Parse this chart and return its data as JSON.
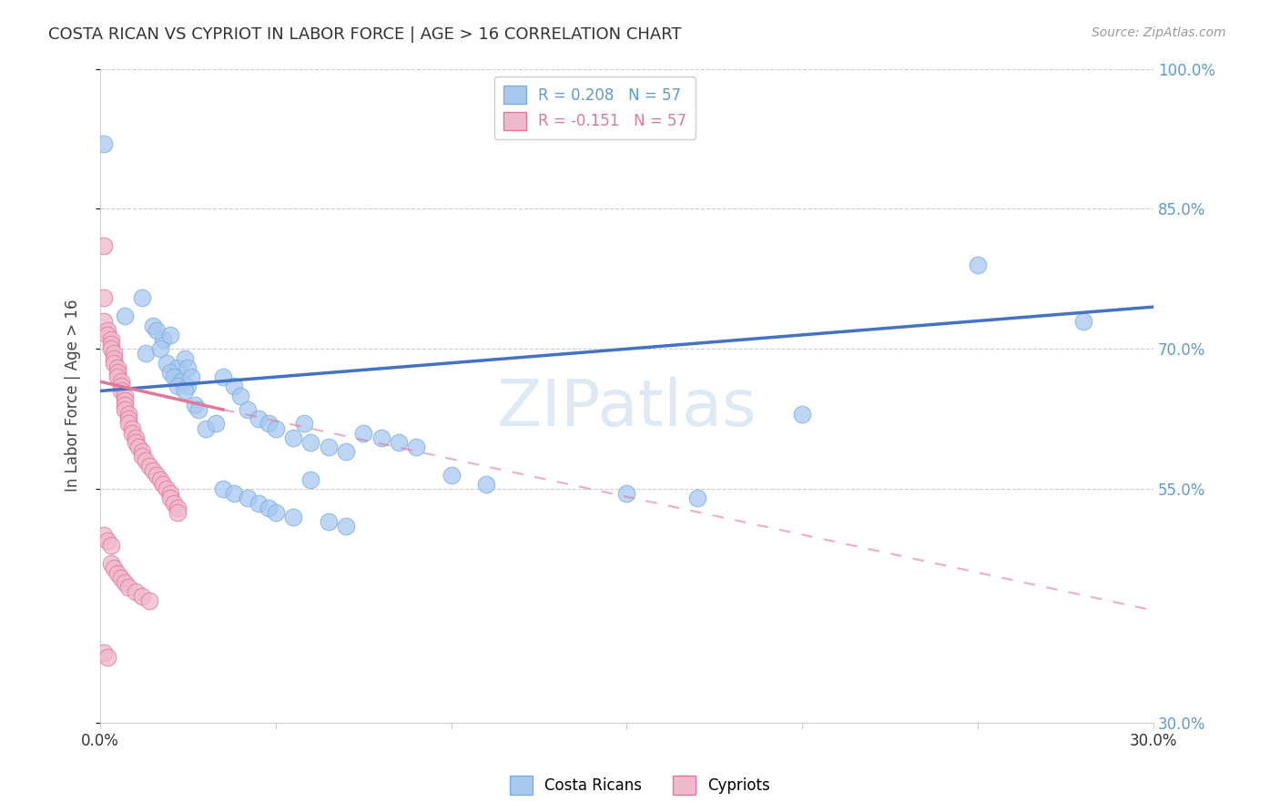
{
  "title": "COSTA RICAN VS CYPRIOT IN LABOR FORCE | AGE > 16 CORRELATION CHART",
  "source": "Source: ZipAtlas.com",
  "ylabel": "In Labor Force | Age > 16",
  "xlim": [
    0.0,
    0.3
  ],
  "ylim": [
    0.3,
    1.0
  ],
  "ytick_vals": [
    0.3,
    0.55,
    0.7,
    0.85,
    1.0
  ],
  "ytick_labels_right": [
    "30.0%",
    "55.0%",
    "70.0%",
    "85.0%",
    "100.0%"
  ],
  "xtick_vals": [
    0.0,
    0.05,
    0.1,
    0.15,
    0.2,
    0.25,
    0.3
  ],
  "xtick_labels": [
    "0.0%",
    "",
    "",
    "",
    "",
    "",
    "30.0%"
  ],
  "blue_line": [
    [
      0.0,
      0.655
    ],
    [
      0.3,
      0.745
    ]
  ],
  "pink_line_solid": [
    [
      0.0,
      0.665
    ],
    [
      0.035,
      0.635
    ]
  ],
  "pink_line_dash": [
    [
      0.035,
      0.635
    ],
    [
      0.3,
      0.42
    ]
  ],
  "background_color": "#ffffff",
  "grid_color": "#cccccc",
  "blue_color": "#4472c4",
  "blue_scatter_color": "#a8c8f0",
  "blue_edge_color": "#7aaee0",
  "pink_color": "#e07898",
  "pink_scatter_color": "#f0b8cc",
  "pink_edge_color": "#e07898",
  "right_tick_color": "#5b9bd5",
  "cr_x": [
    0.001,
    0.007,
    0.012,
    0.015,
    0.018,
    0.016,
    0.013,
    0.02,
    0.017,
    0.019,
    0.022,
    0.02,
    0.021,
    0.024,
    0.023,
    0.025,
    0.022,
    0.025,
    0.024,
    0.027,
    0.028,
    0.026,
    0.03,
    0.033,
    0.035,
    0.038,
    0.04,
    0.042,
    0.045,
    0.048,
    0.05,
    0.055,
    0.06,
    0.065,
    0.058,
    0.07,
    0.035,
    0.038,
    0.042,
    0.045,
    0.048,
    0.05,
    0.055,
    0.06,
    0.065,
    0.07,
    0.075,
    0.08,
    0.085,
    0.09,
    0.1,
    0.11,
    0.15,
    0.17,
    0.2,
    0.25,
    0.28
  ],
  "cr_y": [
    0.92,
    0.735,
    0.755,
    0.725,
    0.71,
    0.72,
    0.695,
    0.715,
    0.7,
    0.685,
    0.68,
    0.675,
    0.67,
    0.69,
    0.665,
    0.68,
    0.66,
    0.66,
    0.655,
    0.64,
    0.635,
    0.67,
    0.615,
    0.62,
    0.67,
    0.66,
    0.65,
    0.635,
    0.625,
    0.62,
    0.615,
    0.605,
    0.6,
    0.595,
    0.62,
    0.59,
    0.55,
    0.545,
    0.54,
    0.535,
    0.53,
    0.525,
    0.52,
    0.56,
    0.515,
    0.51,
    0.61,
    0.605,
    0.6,
    0.595,
    0.565,
    0.555,
    0.545,
    0.54,
    0.63,
    0.79,
    0.73
  ],
  "cy_x": [
    0.001,
    0.001,
    0.001,
    0.002,
    0.002,
    0.003,
    0.003,
    0.003,
    0.004,
    0.004,
    0.004,
    0.005,
    0.005,
    0.005,
    0.006,
    0.006,
    0.006,
    0.007,
    0.007,
    0.007,
    0.007,
    0.008,
    0.008,
    0.008,
    0.009,
    0.009,
    0.01,
    0.01,
    0.011,
    0.012,
    0.012,
    0.013,
    0.014,
    0.015,
    0.016,
    0.017,
    0.018,
    0.019,
    0.02,
    0.02,
    0.021,
    0.022,
    0.022,
    0.003,
    0.004,
    0.005,
    0.006,
    0.007,
    0.008,
    0.01,
    0.012,
    0.014,
    0.001,
    0.002,
    0.003,
    0.001,
    0.002
  ],
  "cy_y": [
    0.81,
    0.755,
    0.73,
    0.72,
    0.715,
    0.71,
    0.705,
    0.7,
    0.695,
    0.69,
    0.685,
    0.68,
    0.675,
    0.67,
    0.665,
    0.66,
    0.655,
    0.65,
    0.645,
    0.64,
    0.635,
    0.63,
    0.625,
    0.62,
    0.615,
    0.61,
    0.605,
    0.6,
    0.595,
    0.59,
    0.585,
    0.58,
    0.575,
    0.57,
    0.565,
    0.56,
    0.555,
    0.55,
    0.545,
    0.54,
    0.535,
    0.53,
    0.525,
    0.47,
    0.465,
    0.46,
    0.455,
    0.45,
    0.445,
    0.44,
    0.435,
    0.43,
    0.5,
    0.495,
    0.49,
    0.375,
    0.37
  ]
}
